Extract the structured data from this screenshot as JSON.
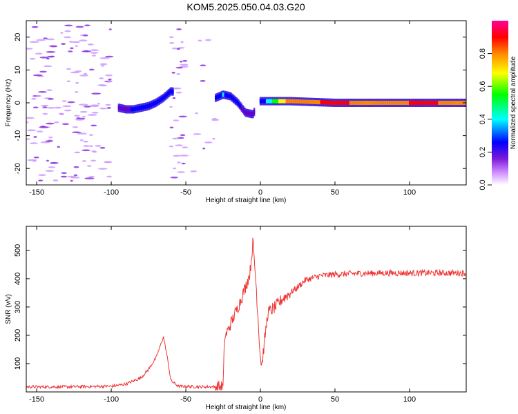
{
  "title": "KOM5.2025.050.04.03.G20",
  "chart_data": [
    {
      "type": "heatmap",
      "xlabel": "Height of straight line (km)",
      "ylabel": "Frequency (Hz)",
      "xlim": [
        -157,
        138
      ],
      "ylim": [
        -25,
        25
      ],
      "xticks": [
        -150,
        -100,
        -50,
        0,
        50,
        100
      ],
      "yticks": [
        -20,
        -10,
        0,
        10,
        20
      ],
      "colorbar": {
        "label": "Normalized spectral amplitude",
        "range": [
          0,
          1
        ],
        "ticks": [
          0.0,
          0.2,
          0.4,
          0.6,
          0.8
        ],
        "colors": [
          "#ffffff",
          "#cc88ff",
          "#6600cc",
          "#0000ff",
          "#00ffff",
          "#00ff00",
          "#ffff00",
          "#ff8800",
          "#ff0000",
          "#ff00aa"
        ]
      },
      "ridge": {
        "x": [
          -95,
          -90,
          -85,
          -80,
          -75,
          -70,
          -65,
          -60,
          -30,
          -25,
          -20,
          -15,
          -10,
          -5,
          0,
          20,
          50,
          80,
          110,
          138
        ],
        "y": [
          -1.5,
          -2,
          -2,
          -1.5,
          -1,
          0,
          1.5,
          3.5,
          1.5,
          2.5,
          2,
          0,
          -3,
          -3.5,
          0.5,
          0.5,
          0,
          0,
          0,
          0
        ],
        "amplitude": [
          0.2,
          0.25,
          0.3,
          0.3,
          0.35,
          0.3,
          0.3,
          0.3,
          0.3,
          0.4,
          0.35,
          0.3,
          0.25,
          0.2,
          0.3,
          0.8,
          0.85,
          0.8,
          0.85,
          0.8
        ]
      },
      "grid": false
    },
    {
      "type": "line",
      "xlabel": "Height of straight line (km)",
      "ylabel": "SNR (v/v)",
      "xlim": [
        -157,
        138
      ],
      "ylim": [
        0,
        585
      ],
      "xticks": [
        -150,
        -100,
        -50,
        0,
        50,
        100
      ],
      "yticks": [
        100,
        200,
        300,
        400,
        500
      ],
      "series": [
        {
          "color": "#ee3333",
          "x": [
            -157,
            -130,
            -100,
            -90,
            -80,
            -75,
            -70,
            -68,
            -65,
            -63,
            -60,
            -55,
            -40,
            -25,
            -24,
            -20,
            -15,
            -10,
            -7,
            -5,
            -3,
            0,
            1,
            3,
            5,
            10,
            15,
            20,
            25,
            30,
            40,
            50,
            60,
            80,
            100,
            120,
            138
          ],
          "values": [
            18,
            18,
            20,
            28,
            50,
            80,
            120,
            150,
            195,
            140,
            40,
            20,
            18,
            18,
            190,
            240,
            300,
            370,
            420,
            530,
            390,
            120,
            95,
            190,
            280,
            300,
            330,
            350,
            370,
            395,
            410,
            415,
            418,
            420,
            420,
            420,
            420
          ]
        }
      ],
      "grid": false
    }
  ]
}
